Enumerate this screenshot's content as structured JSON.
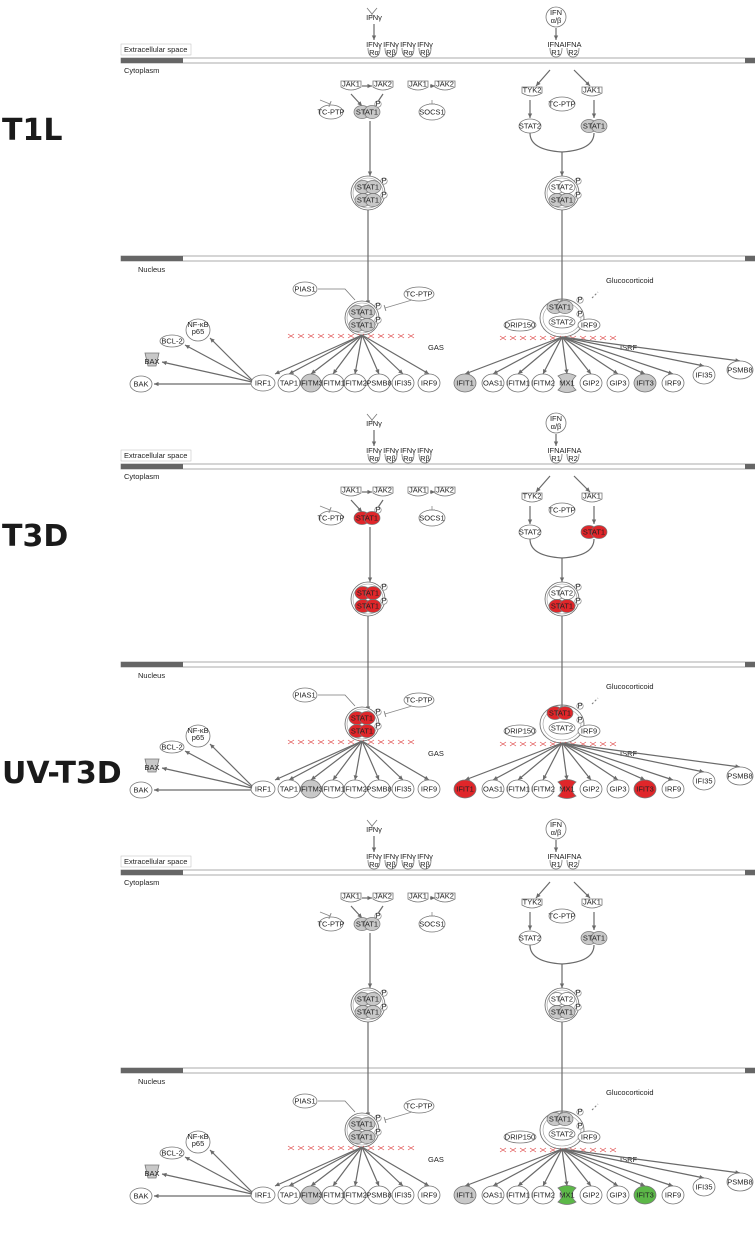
{
  "colors": {
    "grey": "#c8c8c8",
    "red": "#e0262a",
    "green": "#5cb848",
    "line": "#6a6a6a",
    "inhibition": "#e05050"
  },
  "legend_icons": [
    "arrow-icon",
    "inhibition-icon",
    "phosphate-icon"
  ],
  "panels": [
    {
      "label": "T1L",
      "highlights": {
        "STAT1_L": "grey",
        "STAT1_R": "grey",
        "STAT1_dimerL": "grey",
        "STAT1_dimerR": "grey",
        "STAT1_nucL": "grey",
        "STAT1_nucR": "grey",
        "BAX": "grey",
        "IFITM3": "grey",
        "IFIT1": "grey",
        "MX1": "grey",
        "IFIT3": "grey"
      }
    },
    {
      "label": "T3D",
      "highlights": {
        "STAT1_L": "red",
        "STAT1_R": "red",
        "STAT1_dimerL": "red",
        "STAT1_dimerR": "red",
        "STAT1_nucL": "red",
        "STAT1_nucR": "red",
        "BAX": "grey",
        "IFITM3": "grey",
        "IFIT1": "red",
        "MX1": "red",
        "IFIT3": "red"
      }
    },
    {
      "label": "UV-T3D",
      "highlights": {
        "STAT1_L": "grey",
        "STAT1_R": "grey",
        "STAT1_dimerL": "grey",
        "STAT1_dimerR": "grey",
        "STAT1_nucL": "grey",
        "STAT1_nucR": "grey",
        "BAX": "grey",
        "IFITM3": "grey",
        "IFIT1": "grey",
        "MX1": "green",
        "IFIT3": "green"
      }
    }
  ],
  "compartments": {
    "extracellular": "Extracellular space",
    "cytoplasm": "Cytoplasm",
    "nucleus": "Nucleus"
  },
  "labels": {
    "IFNg": "IFNγ",
    "IFNab_1": "IFN",
    "IFNab_2": "α/β",
    "IFNgRa": "IFNγ\nRα",
    "IFNgRb": "IFNγ\nRβ",
    "IFNAR1": "IFNA\nR1",
    "IFNAR2": "IFNA\nR2",
    "JAK1": "JAK1",
    "JAK2": "JAK2",
    "TYK2": "TYK2",
    "TC-PTP": "TC-PTP",
    "SOCS1": "SOCS1",
    "STAT1": "STAT1",
    "STAT2": "STAT2",
    "P": "P",
    "PIAS1": "PIAS1",
    "Glucocorticoid": "Glucocorticoid",
    "NF-kB_1": "NF-κB",
    "NF-kB_2": "p65",
    "BCL-2": "BCL-2",
    "BAX": "BAX",
    "BAK": "BAK",
    "IRF1": "IRF1",
    "IRF9": "IRF9",
    "DRIP150": "DRIP150",
    "GAS": "GAS",
    "ISRF": "ISRF",
    "TAP1": "TAP1",
    "IFITM3": "IFITM3",
    "IFITM1": "IFITM1",
    "IFITM2": "IFITM2",
    "PSMB8": "PSMB8",
    "IFI35": "IFI35",
    "IFIT1": "IFIT1",
    "OAS1": "OAS1",
    "MX1": "MX1",
    "GIP2": "GIP2",
    "GIP3": "GIP3",
    "IFIT3": "IFIT3"
  }
}
